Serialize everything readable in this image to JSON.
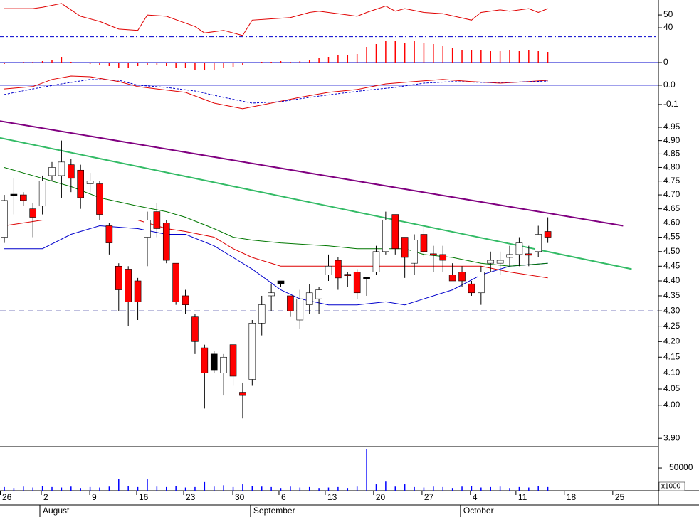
{
  "chart_data": [
    {
      "type": "line",
      "ylim": [
        30.6,
        61.7
      ],
      "yticks": [
        50,
        40
      ],
      "xlim": [
        -0.45,
        68.6
      ],
      "reference_line": {
        "value": 33,
        "color": "#0000cc"
      },
      "series": [
        {
          "color": "#e00000",
          "x": [
            0,
            3,
            4,
            6,
            8,
            10,
            12,
            14,
            15,
            17,
            20,
            21,
            23,
            25,
            26,
            28,
            30,
            32,
            33,
            35,
            37,
            38,
            40,
            41,
            42,
            44,
            46,
            49,
            50,
            52,
            53,
            55,
            56,
            57
          ],
          "values": [
            55,
            55,
            56,
            59,
            49,
            45,
            39,
            38,
            50,
            49,
            41,
            36,
            38,
            34,
            46,
            47,
            48,
            52,
            53,
            51,
            49,
            52,
            57,
            53,
            55,
            52,
            51,
            46,
            52,
            54,
            53,
            55,
            52,
            55
          ]
        }
      ]
    },
    {
      "type": "bar",
      "ylim": [
        -16,
        32
      ],
      "yticks": [
        0
      ],
      "zero_line": "#0000cc",
      "xlim": [
        -0.45,
        68.6
      ],
      "color": "#ff0000",
      "values": [
        -2,
        -1,
        1,
        1,
        2,
        4,
        8,
        1,
        -1,
        -2,
        -3,
        -5,
        -7,
        -8,
        -5,
        -3,
        -4,
        -5,
        -7,
        -8,
        -10,
        -11,
        -10,
        -8,
        -6,
        -3,
        -1,
        1,
        1,
        2,
        1,
        2,
        4,
        6,
        8,
        10,
        10,
        12,
        22,
        26,
        30,
        30,
        28,
        30,
        28,
        26,
        24,
        20,
        18,
        18,
        18,
        16,
        16,
        18,
        16,
        18,
        16,
        15
      ]
    },
    {
      "type": "line",
      "ylim": [
        -0.167,
        0.059
      ],
      "yticks": [
        {
          "value": 0,
          "label": "0.0"
        },
        -0.1
      ],
      "zero_line": "#0000cc",
      "xlim": [
        -0.45,
        68.6
      ],
      "series": [
        {
          "color": "#e00000",
          "x": [
            0,
            3,
            5,
            7,
            9,
            12,
            14,
            16,
            19,
            22,
            25,
            28,
            31,
            34,
            37,
            40,
            43,
            46,
            49,
            52,
            55,
            57
          ],
          "values": [
            -0.019,
            -0.007,
            0.03,
            0.048,
            0.044,
            0.019,
            -0.007,
            -0.019,
            -0.037,
            -0.093,
            -0.122,
            -0.093,
            -0.063,
            -0.037,
            -0.022,
            0.007,
            0.019,
            0.03,
            0.019,
            0.011,
            0.019,
            0.026
          ]
        },
        {
          "color": "#0000cc",
          "dash": "3,2",
          "x": [
            0,
            3,
            6,
            9,
            12,
            14,
            17,
            20,
            23,
            26,
            29,
            32,
            35,
            38,
            41,
            44,
            47,
            50,
            53,
            57
          ],
          "values": [
            -0.048,
            -0.019,
            0.007,
            0.03,
            0.026,
            0,
            -0.011,
            -0.03,
            -0.063,
            -0.093,
            -0.085,
            -0.063,
            -0.044,
            -0.026,
            -0.011,
            0.011,
            0.019,
            0.015,
            0.015,
            0.022
          ]
        }
      ]
    },
    {
      "type": "candlestick",
      "log": true,
      "ylim": [
        3.875,
        4.988
      ],
      "yticks": [
        4.95,
        {
          "value": 4.9,
          "label": "4.90"
        },
        4.85,
        {
          "value": 4.8,
          "label": "4.80"
        },
        4.75,
        {
          "value": 4.7,
          "label": "4.70"
        },
        4.65,
        {
          "value": 4.6,
          "label": "4.60"
        },
        4.55,
        {
          "value": 4.5,
          "label": "4.50"
        },
        4.45,
        {
          "value": 4.4,
          "label": "4.40"
        },
        4.35,
        {
          "value": 4.3,
          "label": "4.30"
        },
        4.25,
        {
          "value": 4.2,
          "label": "4.20"
        },
        4.15,
        {
          "value": 4.1,
          "label": "4.10"
        },
        4.05,
        {
          "value": 4,
          "label": "4.00"
        },
        {
          "value": 3.9,
          "label": "3.90"
        }
      ],
      "xlim": [
        -0.45,
        68.6
      ],
      "open": [
        4.55,
        4.7,
        4.7,
        4.65,
        4.66,
        4.77,
        4.77,
        4.81,
        4.79,
        4.74,
        4.74,
        4.59,
        4.45,
        4.44,
        4.4,
        4.55,
        4.64,
        4.6,
        4.46,
        4.35,
        4.28,
        4.18,
        4.16,
        4.1,
        4.19,
        4.04,
        4.08,
        4.26,
        4.35,
        4.4,
        4.35,
        4.27,
        4.32,
        4.34,
        4.42,
        4.47,
        4.42,
        4.43,
        4.41,
        4.43,
        4.5,
        4.63,
        4.55,
        4.46,
        4.56,
        4.49,
        4.49,
        4.42,
        4.43,
        4.39,
        4.36,
        4.46,
        4.46,
        4.48,
        4.49,
        4.49,
        4.5,
        4.57
      ],
      "high": [
        4.7,
        4.76,
        4.71,
        4.67,
        4.77,
        4.82,
        4.9,
        4.83,
        4.81,
        4.78,
        4.75,
        4.6,
        4.46,
        4.45,
        4.41,
        4.64,
        4.67,
        4.61,
        4.46,
        4.37,
        4.29,
        4.19,
        4.17,
        4.16,
        4.19,
        4.07,
        4.27,
        4.35,
        4.39,
        4.4,
        4.35,
        4.37,
        4.39,
        4.38,
        4.49,
        4.48,
        4.43,
        4.44,
        4.41,
        4.52,
        4.64,
        4.63,
        4.55,
        4.56,
        4.59,
        4.52,
        4.52,
        4.46,
        4.45,
        4.4,
        4.45,
        4.5,
        4.5,
        4.52,
        4.55,
        4.52,
        4.59,
        4.62
      ],
      "low": [
        4.53,
        4.63,
        4.66,
        4.55,
        4.63,
        4.75,
        4.69,
        4.71,
        4.65,
        4.71,
        4.61,
        4.49,
        4.3,
        4.25,
        4.27,
        4.45,
        4.55,
        4.46,
        4.32,
        4.29,
        4.16,
        3.99,
        4.1,
        4.03,
        4.06,
        3.96,
        4.06,
        4.22,
        4.3,
        4.38,
        4.28,
        4.24,
        4.29,
        4.29,
        4.4,
        4.37,
        4.38,
        4.34,
        4.35,
        4.42,
        4.49,
        4.49,
        4.41,
        4.42,
        4.48,
        4.43,
        4.43,
        4.4,
        4.38,
        4.35,
        4.32,
        4.43,
        4.42,
        4.45,
        4.45,
        4.45,
        4.48,
        4.53
      ],
      "close": [
        4.68,
        4.7,
        4.68,
        4.62,
        4.75,
        4.8,
        4.82,
        4.76,
        4.69,
        4.75,
        4.63,
        4.53,
        4.37,
        4.33,
        4.33,
        4.61,
        4.58,
        4.47,
        4.33,
        4.32,
        4.2,
        4.1,
        4.11,
        4.15,
        4.09,
        4.03,
        4.26,
        4.32,
        4.36,
        4.39,
        4.3,
        4.34,
        4.36,
        4.37,
        4.45,
        4.41,
        4.42,
        4.36,
        4.41,
        4.5,
        4.61,
        4.51,
        4.48,
        4.54,
        4.5,
        4.49,
        4.47,
        4.4,
        4.4,
        4.36,
        4.43,
        4.47,
        4.47,
        4.49,
        4.53,
        4.49,
        4.56,
        4.55
      ],
      "body_colors": [
        "#ffffff",
        "#000000",
        "#ff0000",
        "#ff0000",
        "#ffffff",
        "#ffffff",
        "#ffffff",
        "#ff0000",
        "#ff0000",
        "#ffffff",
        "#ff0000",
        "#ff0000",
        "#ff0000",
        "#ff0000",
        "#ff0000",
        "#ffffff",
        "#ff0000",
        "#ff0000",
        "#ff0000",
        "#ff0000",
        "#ff0000",
        "#ff0000",
        "#000000",
        "#ffffff",
        "#ff0000",
        "#ff0000",
        "#ffffff",
        "#ffffff",
        "#ffffff",
        "#000000",
        "#ff0000",
        "#ffffff",
        "#ffffff",
        "#ffffff",
        "#ffffff",
        "#ff0000",
        "#ff0000",
        "#ff0000",
        "#000000",
        "#ffffff",
        "#ffffff",
        "#ff0000",
        "#ff0000",
        "#ffffff",
        "#ff0000",
        "#ff0000",
        "#ff0000",
        "#ff0000",
        "#ff0000",
        "#ff0000",
        "#ffffff",
        "#ffffff",
        "#ffffff",
        "#ffffff",
        "#ffffff",
        "#ff0000",
        "#ffffff",
        "#ff0000"
      ],
      "series": [
        {
          "color": "#0000cc",
          "x": [
            0,
            4,
            7,
            10,
            14,
            17,
            19,
            22,
            24,
            26,
            29,
            31,
            34,
            37,
            40,
            42,
            44,
            47,
            50,
            53,
            57
          ],
          "values": [
            4.51,
            4.51,
            4.56,
            4.59,
            4.58,
            4.56,
            4.56,
            4.52,
            4.48,
            4.44,
            4.37,
            4.34,
            4.32,
            4.32,
            4.33,
            4.32,
            4.34,
            4.37,
            4.42,
            4.45,
            4.46
          ]
        },
        {
          "color": "#dd0000",
          "x": [
            0,
            4,
            7,
            10,
            14,
            17,
            19,
            22,
            24,
            26,
            29,
            31,
            34,
            37,
            40,
            42,
            44,
            47,
            50,
            53,
            57
          ],
          "values": [
            4.59,
            4.61,
            4.61,
            4.61,
            4.61,
            4.58,
            4.57,
            4.55,
            4.51,
            4.48,
            4.45,
            4.45,
            4.45,
            4.45,
            4.45,
            4.45,
            4.45,
            4.45,
            4.45,
            4.43,
            4.41
          ]
        },
        {
          "color": "#007700",
          "x": [
            0,
            4,
            7,
            10,
            14,
            17,
            19,
            22,
            24,
            26,
            29,
            34,
            37,
            40,
            42,
            44,
            47,
            50,
            53,
            57
          ],
          "values": [
            4.8,
            4.76,
            4.73,
            4.69,
            4.66,
            4.64,
            4.62,
            4.58,
            4.55,
            4.54,
            4.53,
            4.52,
            4.51,
            4.51,
            4.51,
            4.49,
            4.48,
            4.46,
            4.45,
            4.46
          ]
        },
        {
          "color": "#800080",
          "width": 2,
          "x": [
            -0.45,
            64.9
          ],
          "values": [
            4.974,
            4.59
          ]
        },
        {
          "color": "#33bb66",
          "width": 2,
          "x": [
            -0.45,
            65.8
          ],
          "values": [
            4.91,
            4.44
          ]
        },
        {
          "color": "#000080",
          "dash": "8,5",
          "x": [
            -0.45,
            68.6
          ],
          "values": [
            4.3,
            4.3
          ]
        }
      ]
    },
    {
      "type": "bar",
      "ylim": [
        0,
        97000
      ],
      "yticks": [
        50000
      ],
      "unit_label": "x1000",
      "xlim": [
        -0.45,
        68.6
      ],
      "color": "#0000ff",
      "values": [
        8000,
        6000,
        9000,
        7000,
        10000,
        8000,
        7000,
        9000,
        6000,
        8000,
        7000,
        9000,
        26000,
        10000,
        8000,
        25000,
        9000,
        8000,
        10000,
        7000,
        8000,
        19000,
        9000,
        12000,
        8000,
        14000,
        10000,
        9000,
        8000,
        6000,
        9000,
        7000,
        8000,
        6000,
        7000,
        8000,
        6000,
        9000,
        92000,
        14000,
        20000,
        9000,
        14000,
        8000,
        7000,
        9000,
        8000,
        6000,
        9000,
        10000,
        7000,
        8000,
        9000,
        6000,
        8000,
        7000,
        10000,
        8000
      ],
      "xticks": [
        {
          "value": -0.45,
          "label": "26"
        },
        {
          "value": 3.88,
          "label": "2"
        },
        {
          "value": 8.96,
          "label": "9"
        },
        {
          "value": 13.88,
          "label": "16"
        },
        {
          "value": 18.81,
          "label": "23"
        },
        {
          "value": 23.96,
          "label": "30"
        },
        {
          "value": 28.81,
          "label": "6"
        },
        {
          "value": 33.66,
          "label": "13"
        },
        {
          "value": 38.73,
          "label": "20"
        },
        {
          "value": 43.81,
          "label": "27"
        },
        {
          "value": 48.88,
          "label": "4"
        },
        {
          "value": 53.66,
          "label": "11"
        },
        {
          "value": 58.73,
          "label": "18"
        },
        {
          "value": 63.81,
          "label": "25"
        }
      ],
      "month_ticks": [
        {
          "value": 3.73,
          "label": "August"
        },
        {
          "value": 25.82,
          "label": "September"
        },
        {
          "value": 47.84,
          "label": "October"
        }
      ]
    }
  ]
}
